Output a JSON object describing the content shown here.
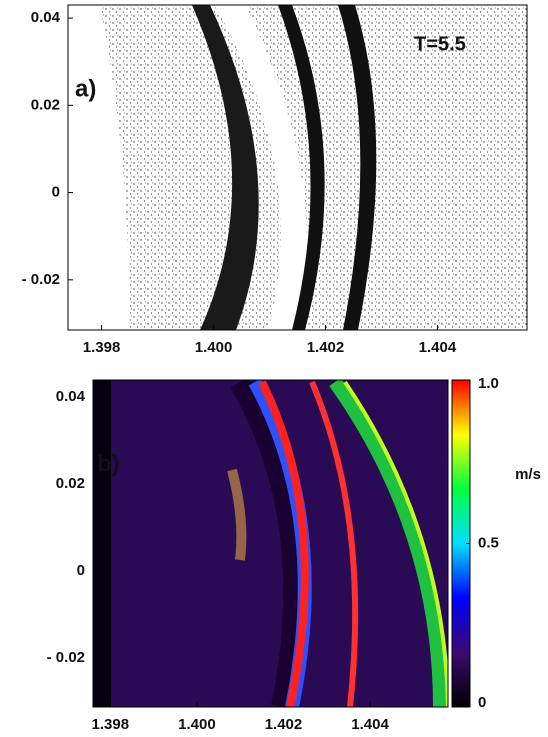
{
  "chart_data": [
    {
      "type": "scatter",
      "panel_label": "a)",
      "annotation": "T=5.5",
      "xlim": [
        1.3974,
        1.4056
      ],
      "ylim": [
        -0.0315,
        0.043
      ],
      "xticks": [
        1.398,
        {
          "value": 1.4,
          "label": "1.400"
        },
        1.402,
        1.404
      ],
      "yticks": [
        0.04,
        0.02,
        0,
        {
          "value": -0.02,
          "label": "- 0.02"
        }
      ]
    },
    {
      "type": "heatmap",
      "panel_label": "b)",
      "xlim": [
        1.3976,
        1.4058
      ],
      "ylim": [
        -0.0313,
        0.0439
      ],
      "xticks": [
        1.398,
        {
          "value": 1.4,
          "label": "1.400"
        },
        1.402,
        1.404
      ],
      "yticks": [
        0.04,
        0.02,
        0,
        {
          "value": -0.02,
          "label": "- 0.02"
        }
      ],
      "colorbar": {
        "label": "m/s",
        "lim": [
          0,
          1
        ],
        "ticks": [
          {
            "value": 1,
            "label": "1.0"
          },
          0.5,
          0
        ],
        "colormap": [
          "#000000",
          "#3a0a70",
          "#0000ff",
          "#00e0ff",
          "#00ff40",
          "#ffff00",
          "#ff0000"
        ]
      }
    }
  ]
}
